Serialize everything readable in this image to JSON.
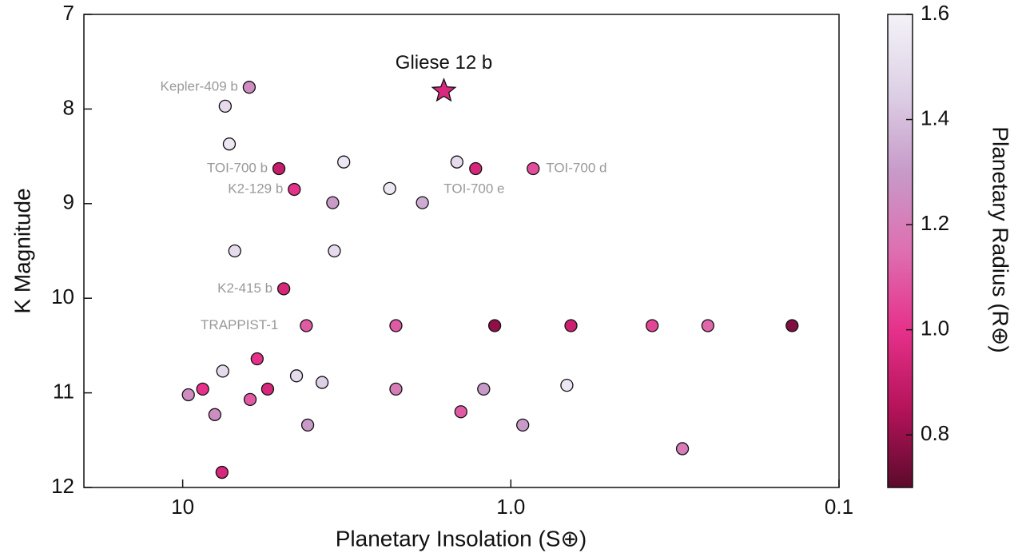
{
  "chart_data": {
    "type": "scatter",
    "x_label": "Planetary Insolation (S⊕)",
    "y_label": "K Magnitude",
    "colorbar_label": "Planetary Radius (R⊕)",
    "x_log": true,
    "xlim": [
      20,
      0.1
    ],
    "xticks": [
      10,
      {
        "value": 1,
        "label": "1.0"
      },
      0.1
    ],
    "ylim": [
      7,
      12
    ],
    "yticks": [
      7,
      8,
      9,
      10,
      11,
      12
    ],
    "clim": [
      0.7,
      1.6
    ],
    "cticks": [
      0.8,
      {
        "value": 1,
        "label": "1.0"
      },
      1.2,
      1.4,
      1.6
    ],
    "colormap": [
      "#5c0a2b",
      "#b5135a",
      "#e6318b",
      "#de6fb0",
      "#c79ac8",
      "#ddd0e6",
      "#f4f2f8"
    ],
    "x": [
      6.27,
      7.42,
      7.21,
      5.09,
      3.23,
      4.57,
      3.49,
      2.34,
      1.86,
      1.46,
      1.28,
      0.855,
      6.94,
      3.45,
      4.92,
      4.2,
      2.24,
      1.12,
      0.656,
      0.371,
      0.251,
      0.139,
      5.93,
      7.55,
      4.5,
      3.76,
      9.61,
      8.69,
      5.51,
      6.23,
      2.24,
      1.21,
      0.675,
      7.98,
      4.16,
      1.42,
      0.92,
      0.3,
      7.59
    ],
    "values": [
      7.77,
      7.97,
      8.37,
      8.63,
      8.56,
      8.85,
      8.99,
      8.84,
      8.99,
      8.56,
      8.63,
      8.63,
      9.5,
      9.5,
      9.9,
      10.29,
      10.29,
      10.29,
      10.29,
      10.29,
      10.29,
      10.29,
      10.64,
      10.77,
      10.82,
      10.89,
      11.02,
      10.96,
      10.96,
      11.07,
      10.96,
      10.96,
      10.92,
      11.23,
      11.34,
      11.2,
      11.34,
      11.59,
      11.84
    ],
    "radius": [
      1.25,
      1.5,
      1.55,
      0.9,
      1.55,
      1.0,
      1.3,
      1.55,
      1.35,
      1.5,
      0.95,
      1.07,
      1.5,
      1.5,
      0.95,
      1.1,
      1.1,
      0.79,
      0.92,
      1.05,
      1.13,
      0.76,
      1.0,
      1.5,
      1.5,
      1.45,
      1.25,
      1.0,
      0.95,
      1.1,
      1.2,
      1.3,
      1.55,
      1.25,
      1.3,
      1.1,
      1.3,
      1.2,
      0.95
    ],
    "point_labels": [
      "Kepler-409 b",
      null,
      null,
      "TOI-700 b",
      null,
      "K2-129 b",
      null,
      null,
      null,
      null,
      "TOI-700 e",
      "TOI-700 d",
      null,
      null,
      "K2-415 b",
      "TRAPPIST-1",
      null,
      null,
      null,
      null,
      null,
      null,
      null,
      null,
      null,
      null,
      null,
      null,
      null,
      null,
      null,
      null,
      null,
      null,
      null,
      null,
      null,
      null,
      null
    ],
    "highlight": {
      "name": "Gliese 12 b",
      "x": 1.6,
      "y": 7.81,
      "radius": 0.96
    }
  }
}
